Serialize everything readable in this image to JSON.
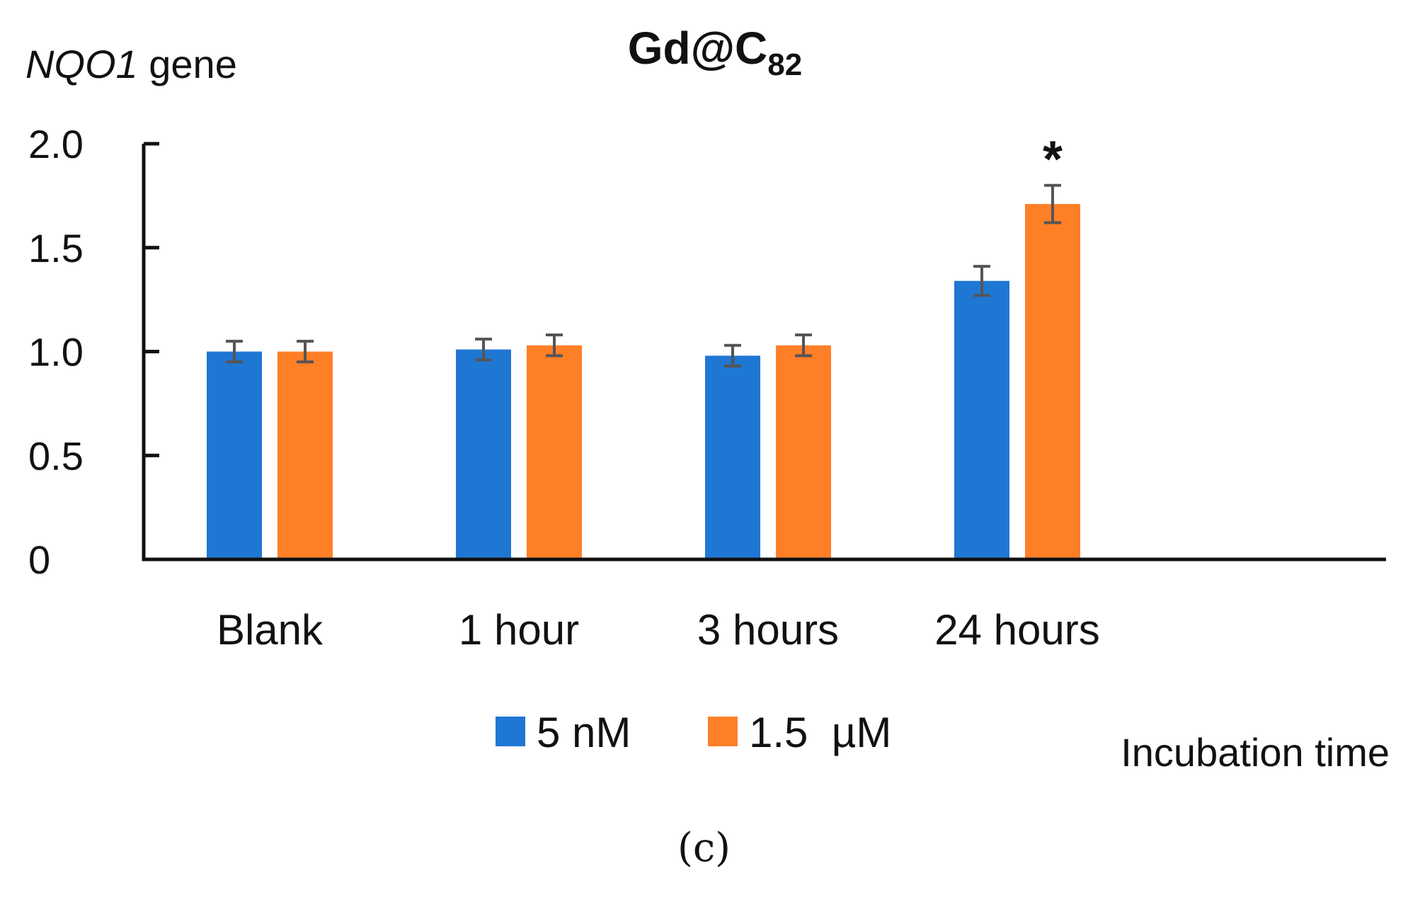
{
  "chart_data": {
    "type": "bar",
    "title": "Gd@C",
    "title_subscript": "82",
    "ylabel_italic": "NQO1",
    "ylabel_rest": " gene",
    "xlabel": "Incubation time",
    "ylim": [
      0,
      2.0
    ],
    "yticks": [
      0,
      0.5,
      1.0,
      1.5,
      2.0
    ],
    "ytick_labels": [
      "0",
      "0.5",
      "1.0",
      "1.5",
      "2.0"
    ],
    "categories": [
      "Blank",
      "1 hour",
      "3 hours",
      "24 hours"
    ],
    "series": [
      {
        "name": "5 nM",
        "color": "#1f77d4",
        "values": [
          1.0,
          1.01,
          0.98,
          1.34
        ],
        "errors": [
          0.05,
          0.05,
          0.05,
          0.07
        ]
      },
      {
        "name": "1.5  µM",
        "color": "#ff7f27",
        "values": [
          1.0,
          1.03,
          1.03,
          1.71
        ],
        "errors": [
          0.05,
          0.05,
          0.05,
          0.09
        ]
      }
    ],
    "annotations": [
      {
        "text": "*",
        "category": "24 hours",
        "series": "1.5  µM"
      }
    ],
    "error_bar_color": "#555555",
    "legend_position": "bottom-center"
  },
  "panel_label": "(c)"
}
